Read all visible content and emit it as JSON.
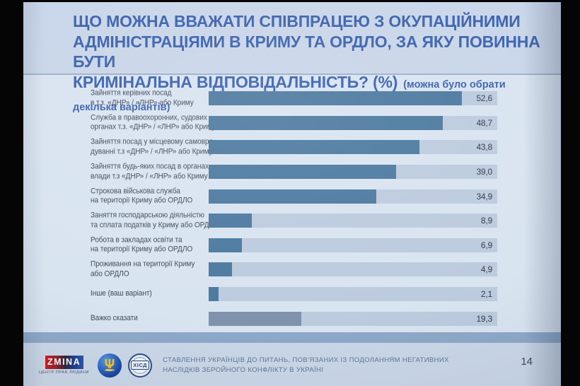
{
  "slide": {
    "title_line1": "ЩО МОЖНА ВВАЖАТИ СПІВПРАЦЕЮ З ОКУПАЦІЙНИМИ",
    "title_line2": "АДМІНІСТРАЦІЯМИ В КРИМУ ТА ОРДЛО, ЗА ЯКУ ПОВИННА БУТИ",
    "title_line3": "КРИМІНАЛЬНА ВІДПОВІДАЛЬНІСТЬ? (%)",
    "title_note": "(можна було обрати декілька варіантів)",
    "page_number": "14"
  },
  "chart_data": {
    "type": "bar",
    "orientation": "horizontal",
    "title": "ЩО МОЖНА ВВАЖАТИ СПІВПРАЦЕЮ З ОКУПАЦІЙНИМИ АДМІНІСТРАЦІЯМИ В КРИМУ ТА ОРДЛО, ЗА ЯКУ ПОВИННА БУТИ КРИМІНАЛЬНА ВІДПОВІДАЛЬНІСТЬ? (%)",
    "subtitle": "(можна було обрати декілька варіантів)",
    "grid": false,
    "xlim": [
      0,
      60
    ],
    "categories": [
      "Зайняття керівних посад\nв т.з. «ДНР» / «ЛНР» або Криму",
      "Служба в правоохоронних, судових\nорганах т.з. «ДНР» / «ЛНР» або Криму",
      "Зайняття посад у місцевому самовря-\nдуванні т.з «ДНР» / «ЛНР» або Криму",
      "Зайняття будь-яких посад в органах\nвлади т.з «ДНР» / «ЛНР» або Криму",
      "Строкова військова служба\nна території Криму або ОРДЛО",
      "Заняття господарською діяльністю\nта сплата податків у Криму або ОРДЛО",
      "Робота в закладах освіти та\nна території Криму або ОРДЛО",
      "Проживання на території Криму\nабо ОРДЛО",
      "Інше (ваш варіант)",
      "Важко сказати"
    ],
    "values": [
      52.6,
      48.7,
      43.8,
      39.0,
      34.9,
      8.9,
      6.9,
      4.9,
      2.1,
      19.3
    ],
    "value_labels": [
      "52,6",
      "48,7",
      "43,8",
      "39,0",
      "34,9",
      "8,9",
      "6,9",
      "4,9",
      "2,1",
      "19,3"
    ],
    "muted_rows": [
      9
    ],
    "colors": {
      "bar": "#4d7aa0",
      "bar_muted": "#8093ac",
      "track": "#bdcbdf"
    }
  },
  "footer": {
    "caption_line1": "СТАВЛЕННЯ УКРАЇНЦІВ ДО ПИТАНЬ, ПОВ’ЯЗАНИХ ІЗ ПОДОЛАННЯМ НЕГАТИВНИХ",
    "caption_line2": "НАСЛІДКІВ ЗБРОЙНОГО КОНФЛІКТУ В УКРАЇНІ",
    "logos": {
      "zmina_text": "ZMINA",
      "zmina_tagline": "центр прав людини",
      "khisd_text": "ХІСД"
    }
  }
}
